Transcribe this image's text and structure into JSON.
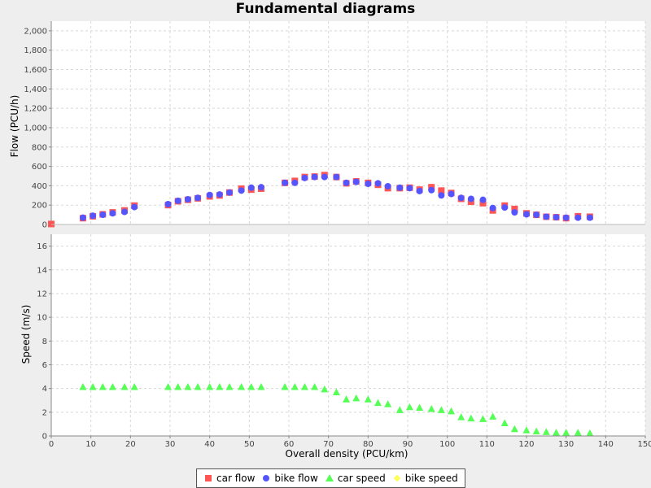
{
  "chart_data": {
    "title": "Fundamental diagrams",
    "type": "scatter",
    "xlabel": "Overall density (PCU/km)",
    "xlim": [
      0,
      150
    ],
    "xticks": [
      0,
      10,
      20,
      30,
      40,
      50,
      60,
      70,
      80,
      90,
      100,
      110,
      120,
      130,
      140,
      150
    ],
    "grid": true,
    "legend_placement": "bottom-center",
    "subplots": [
      {
        "ylabel": "Flow (PCU/h)",
        "ylim": [
          0,
          2100
        ],
        "yticks": [
          0,
          200,
          400,
          600,
          800,
          1000,
          1200,
          1400,
          1600,
          1800,
          2000
        ],
        "ytick_labels": [
          "0",
          "200",
          "400",
          "600",
          "800",
          "1,000",
          "1,200",
          "1,400",
          "1,600",
          "1,800",
          "2,000"
        ],
        "series": [
          {
            "name": "car flow",
            "marker": "square",
            "color": "#ff5555",
            "x": [
              0,
              8,
              10.5,
              13,
              15.5,
              18.5,
              21,
              29.5,
              32,
              34.5,
              37,
              40,
              42.5,
              45,
              48,
              50.5,
              53,
              59,
              61.5,
              64,
              66.5,
              69,
              72,
              74.5,
              77,
              80,
              82.5,
              85,
              88,
              90.5,
              93,
              96,
              98.5,
              101,
              103.5,
              106,
              109,
              111.5,
              114.5,
              117,
              120,
              122.5,
              125,
              127.5,
              130,
              133,
              136
            ],
            "y": [
              5,
              65,
              85,
              105,
              125,
              145,
              195,
              200,
              240,
              255,
              270,
              290,
              300,
              330,
              370,
              360,
              370,
              430,
              450,
              490,
              495,
              510,
              490,
              425,
              445,
              430,
              410,
              375,
              375,
              380,
              360,
              385,
              350,
              325,
              265,
              235,
              220,
              145,
              195,
              160,
              115,
              100,
              80,
              75,
              65,
              85,
              80
            ]
          },
          {
            "name": "bike flow",
            "marker": "circle",
            "color": "#5555ff",
            "x": [
              8,
              10.5,
              13,
              15.5,
              18.5,
              21,
              29.5,
              32,
              34.5,
              37,
              40,
              42.5,
              45,
              48,
              50.5,
              53,
              59,
              61.5,
              64,
              66.5,
              69,
              72,
              74.5,
              77,
              80,
              82.5,
              85,
              88,
              90.5,
              93,
              96,
              98.5,
              101,
              103.5,
              106,
              109,
              111.5,
              114.5,
              117,
              120,
              122.5,
              125,
              127.5,
              130,
              133,
              136
            ],
            "y": [
              70,
              90,
              100,
              115,
              130,
              180,
              210,
              245,
              260,
              275,
              305,
              310,
              330,
              350,
              380,
              385,
              430,
              430,
              480,
              490,
              490,
              490,
              430,
              440,
              420,
              425,
              395,
              380,
              375,
              345,
              355,
              300,
              315,
              275,
              265,
              255,
              170,
              175,
              125,
              105,
              100,
              80,
              75,
              70,
              70,
              70
            ]
          }
        ]
      },
      {
        "ylabel": "Speed (m/s)",
        "ylim": [
          0,
          17
        ],
        "yticks": [
          0,
          2,
          4,
          6,
          8,
          10,
          12,
          14,
          16
        ],
        "ytick_labels": [
          "0",
          "2",
          "4",
          "6",
          "8",
          "10",
          "12",
          "14",
          "16"
        ],
        "series": [
          {
            "name": "car speed",
            "marker": "triangle",
            "color": "#55ff55",
            "x": [
              8,
              10.5,
              13,
              15.5,
              18.5,
              21,
              29.5,
              32,
              34.5,
              37,
              40,
              42.5,
              45,
              48,
              50.5,
              53,
              59,
              61.5,
              64,
              66.5,
              69,
              72,
              74.5,
              77,
              80,
              82.5,
              85,
              88,
              90.5,
              93,
              96,
              98.5,
              101,
              103.5,
              106,
              109,
              111.5,
              114.5,
              117,
              120,
              122.5,
              125,
              127.5,
              130,
              133,
              136
            ],
            "y": [
              4.15,
              4.15,
              4.15,
              4.15,
              4.15,
              4.15,
              4.15,
              4.15,
              4.15,
              4.15,
              4.15,
              4.15,
              4.15,
              4.15,
              4.15,
              4.15,
              4.15,
              4.15,
              4.15,
              4.15,
              3.95,
              3.7,
              3.1,
              3.2,
              3.1,
              2.8,
              2.7,
              2.2,
              2.45,
              2.4,
              2.3,
              2.2,
              2.1,
              1.6,
              1.5,
              1.45,
              1.65,
              1.1,
              0.6,
              0.5,
              0.4,
              0.35,
              0.3,
              0.3,
              0.3,
              0.25
            ]
          },
          {
            "name": "bike speed",
            "marker": "diamond",
            "color": "#ffff55",
            "x": [],
            "y": []
          }
        ]
      }
    ]
  }
}
